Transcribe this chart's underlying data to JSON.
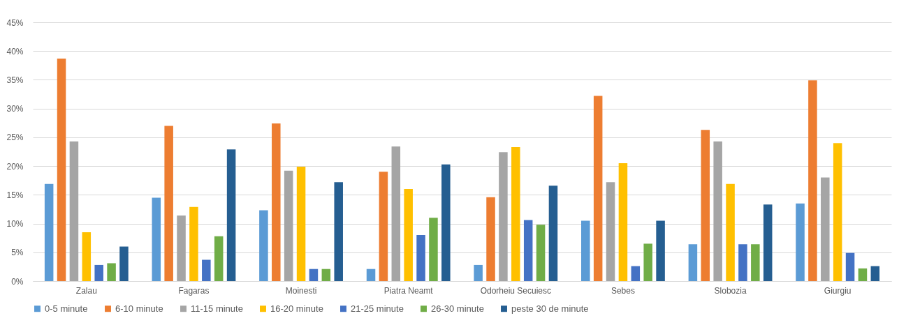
{
  "chart_data": {
    "type": "bar",
    "categories": [
      "Zalau",
      "Fagaras",
      "Moinesti",
      "Piatra Neamt",
      "Odorheiu Secuiesc",
      "Sebes",
      "Slobozia",
      "Giurgiu"
    ],
    "series": [
      {
        "name": "0-5 minute",
        "color": "#5b9bd5",
        "values": [
          16.9,
          14.5,
          12.3,
          2.1,
          2.8,
          10.5,
          6.4,
          13.5
        ]
      },
      {
        "name": "6-10 minute",
        "color": "#ed7d31",
        "values": [
          38.7,
          27.0,
          27.4,
          19.0,
          14.6,
          32.2,
          26.3,
          34.9
        ]
      },
      {
        "name": "11-15 minute",
        "color": "#a5a5a5",
        "values": [
          24.3,
          11.4,
          19.2,
          23.4,
          22.4,
          17.2,
          24.3,
          18.0
        ]
      },
      {
        "name": "16-20 minute",
        "color": "#ffc000",
        "values": [
          8.5,
          12.9,
          19.9,
          16.0,
          23.3,
          20.5,
          16.9,
          24.0
        ]
      },
      {
        "name": "21-25 minute",
        "color": "#4472c4",
        "values": [
          2.8,
          3.7,
          2.1,
          8.0,
          10.6,
          2.6,
          6.4,
          4.9
        ]
      },
      {
        "name": "26-30 minute",
        "color": "#70ad47",
        "values": [
          3.1,
          7.8,
          2.1,
          11.0,
          9.8,
          6.5,
          6.4,
          2.2
        ]
      },
      {
        "name": "peste 30 de minute",
        "color": "#255e91",
        "values": [
          6.0,
          22.9,
          17.2,
          20.3,
          16.6,
          10.5,
          13.3,
          2.6
        ]
      }
    ],
    "ylim": [
      0,
      45
    ],
    "yticks": [
      {
        "value": 0,
        "label": "0%"
      },
      {
        "value": 5,
        "label": "5%"
      },
      {
        "value": 10,
        "label": "10%"
      },
      {
        "value": 15,
        "label": "15%"
      },
      {
        "value": 20,
        "label": "20%"
      },
      {
        "value": 25,
        "label": "25%"
      },
      {
        "value": 30,
        "label": "30%"
      },
      {
        "value": 35,
        "label": "35%"
      },
      {
        "value": 40,
        "label": "40%"
      },
      {
        "value": 45,
        "label": "45%"
      }
    ],
    "grid": "y",
    "legend": "bottom"
  }
}
